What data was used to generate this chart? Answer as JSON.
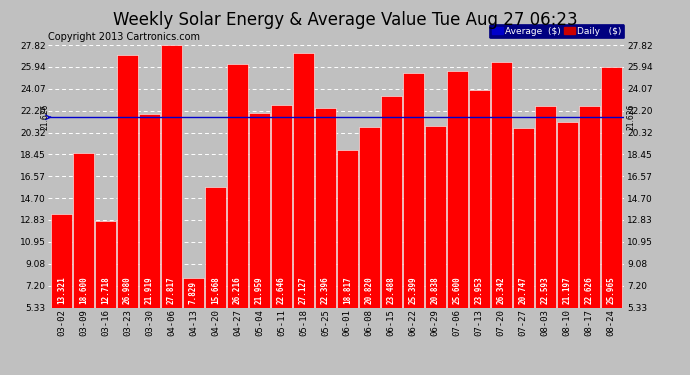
{
  "title": "Weekly Solar Energy & Average Value Tue Aug 27 06:23",
  "copyright": "Copyright 2013 Cartronics.com",
  "bar_color": "#ff0000",
  "bar_edge_color": "#ffffff",
  "background_color": "#c0c0c0",
  "plot_bg_color": "#c0c0c0",
  "average_line": 21.626,
  "average_line_color": "#0000cc",
  "categories": [
    "03-02",
    "03-09",
    "03-16",
    "03-23",
    "03-30",
    "04-06",
    "04-13",
    "04-20",
    "04-27",
    "05-04",
    "05-11",
    "05-18",
    "05-25",
    "06-01",
    "06-08",
    "06-15",
    "06-22",
    "06-29",
    "07-06",
    "07-13",
    "07-20",
    "07-27",
    "08-03",
    "08-10",
    "08-17",
    "08-24"
  ],
  "values": [
    13.321,
    18.6,
    12.718,
    26.98,
    21.919,
    27.817,
    7.829,
    15.668,
    26.216,
    21.959,
    22.646,
    27.127,
    22.396,
    18.817,
    20.82,
    23.488,
    25.399,
    20.838,
    25.6,
    23.953,
    26.342,
    20.747,
    22.593,
    21.197,
    22.626,
    25.965
  ],
  "ylim_min": 5.33,
  "ylim_max": 27.82,
  "yticks": [
    5.33,
    7.2,
    9.08,
    10.95,
    12.83,
    14.7,
    16.57,
    18.45,
    20.32,
    22.2,
    24.07,
    25.94,
    27.82
  ],
  "legend_avg_color": "#0000cc",
  "legend_daily_color": "#cc0000",
  "legend_avg_text": "Average  ($)",
  "legend_daily_text": "Daily   ($)",
  "avg_label": "21.626",
  "title_fontsize": 12,
  "copyright_fontsize": 7,
  "tick_fontsize": 6.5,
  "value_fontsize": 5.5,
  "dashed_line_color": "#ffffff"
}
